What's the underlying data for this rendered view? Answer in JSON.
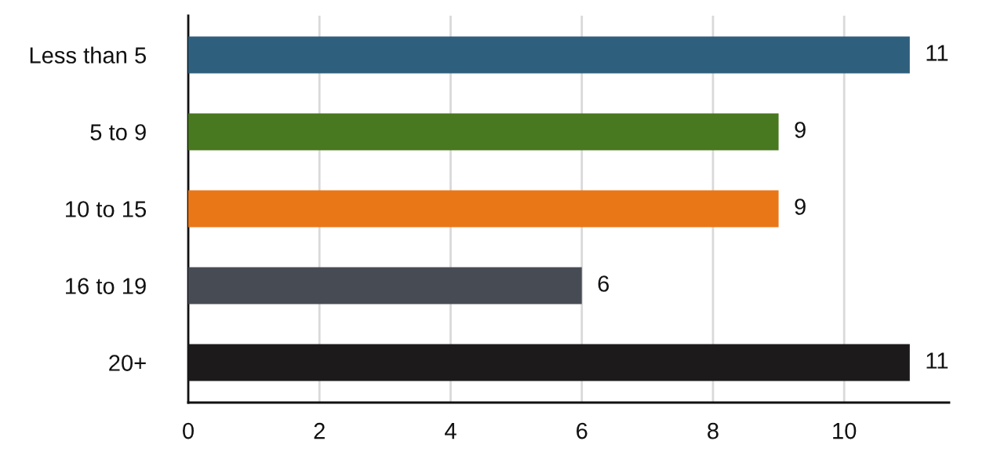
{
  "chart_data": {
    "type": "bar",
    "orientation": "horizontal",
    "categories": [
      "Less than 5",
      "5 to 9",
      "10 to 15",
      "16 to 19",
      "20+"
    ],
    "values": [
      11,
      9,
      9,
      6,
      11
    ],
    "colors": [
      "#2e5f7c",
      "#48781f",
      "#e97717",
      "#474c54",
      "#1c1a1b"
    ],
    "xlim": [
      0,
      11.6
    ],
    "xticks": [
      0,
      2,
      4,
      6,
      8,
      10
    ],
    "grid": "x",
    "data_labels": true
  }
}
